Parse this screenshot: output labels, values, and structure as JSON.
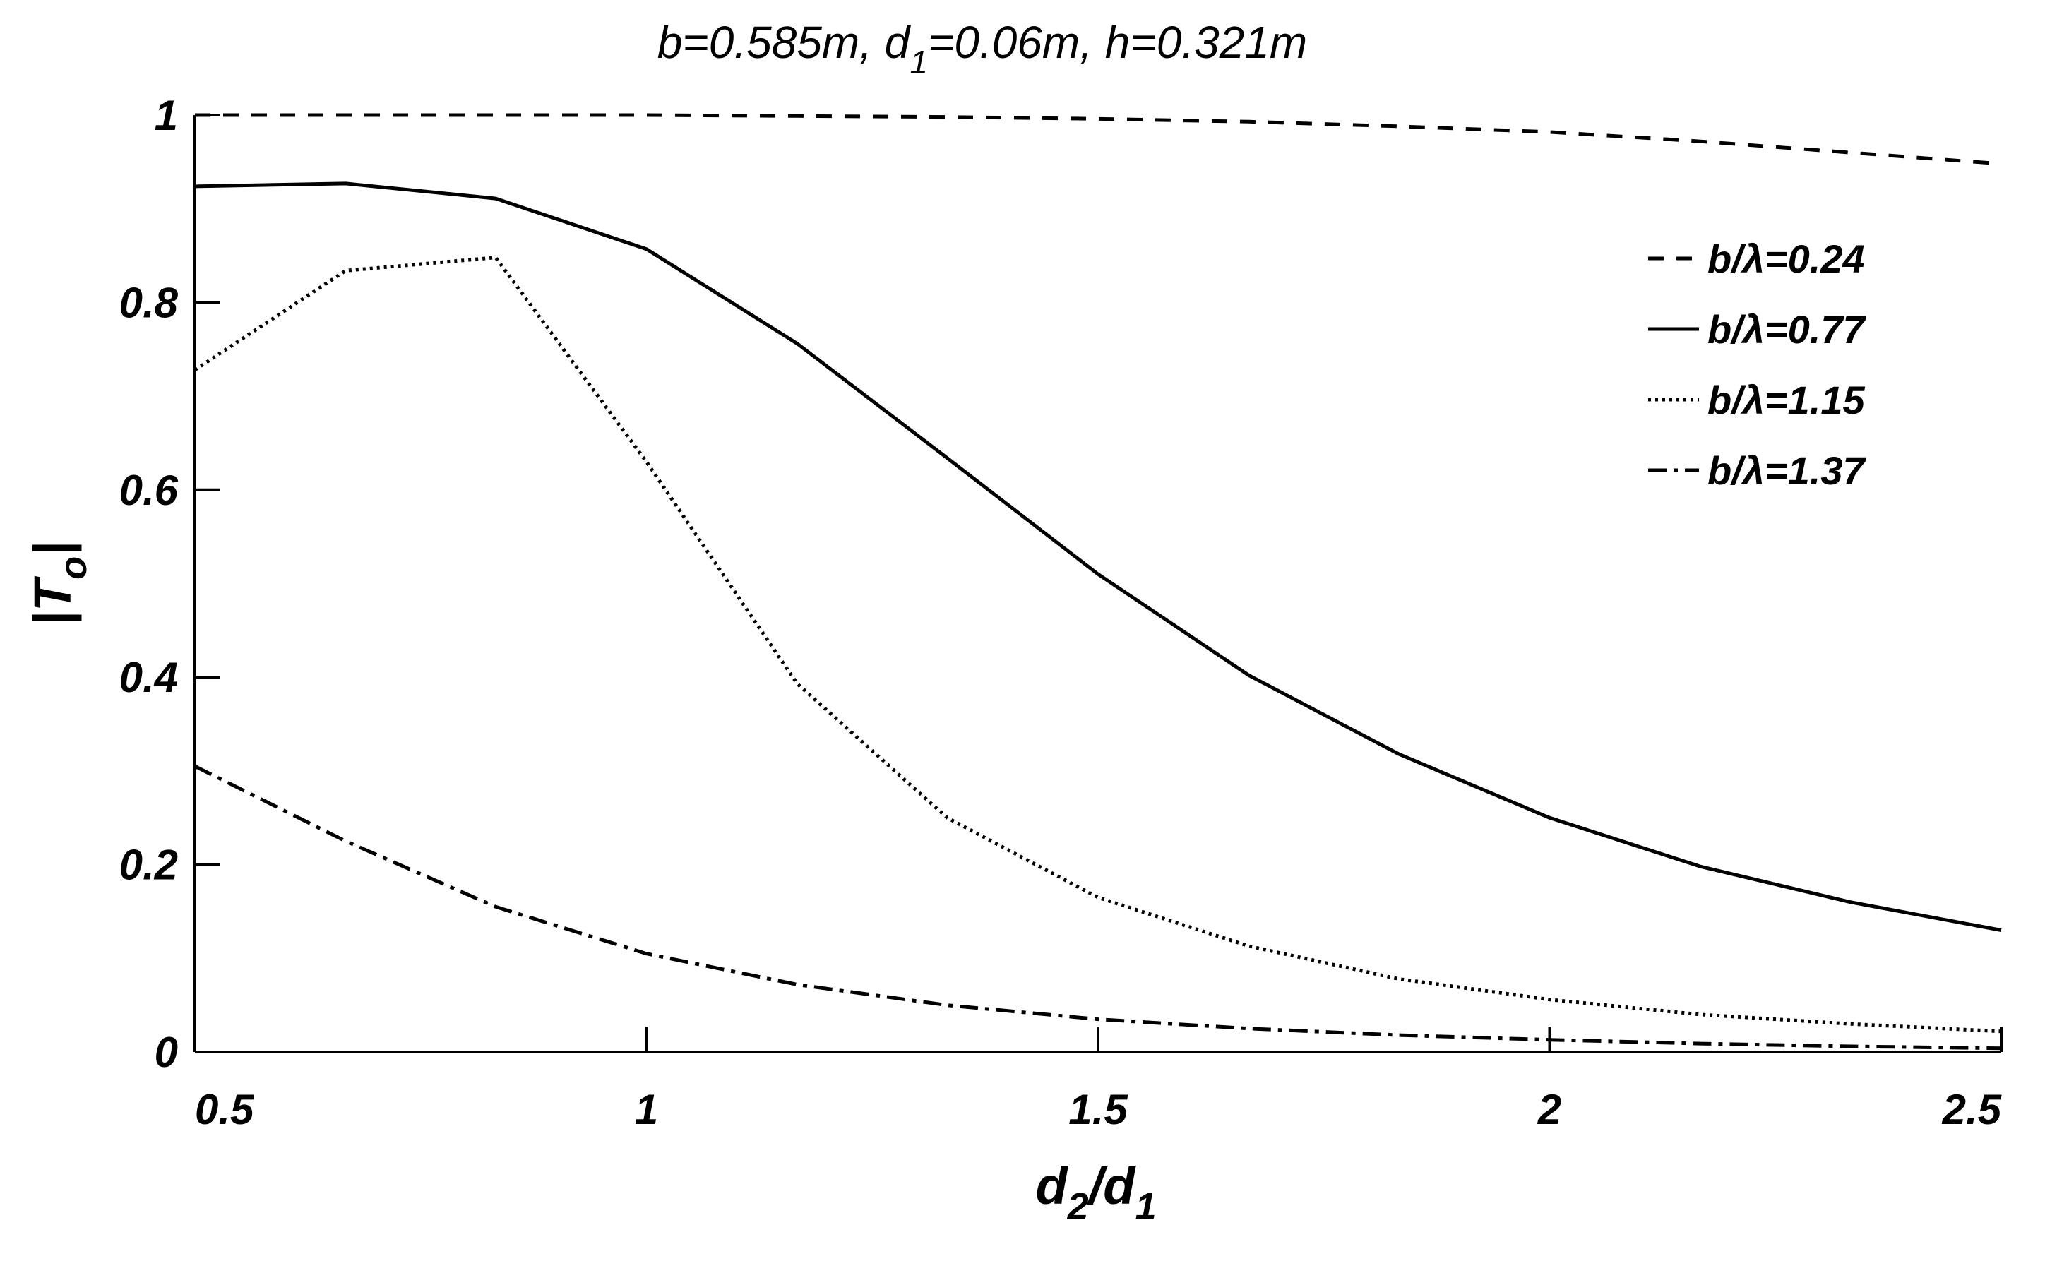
{
  "chart_data": {
    "type": "line",
    "title": {
      "p1": "b=0.585m, d",
      "p1_sub": "1",
      "p2": "=0.06m, h=0.321m"
    },
    "xlabel": {
      "a": "d",
      "a_sub": "2",
      "slash": "/d",
      "b_sub": "1"
    },
    "ylabel": {
      "open": "|T",
      "sub": "o",
      "close": "|"
    },
    "xlim": [
      0.5,
      2.5
    ],
    "ylim": [
      0,
      1
    ],
    "xticks": [
      0.5,
      1,
      1.5,
      2,
      2.5
    ],
    "xtick_labels": [
      "0.5",
      "1",
      "1.5",
      "2",
      "2.5"
    ],
    "yticks": [
      0,
      0.2,
      0.4,
      0.6,
      0.8,
      1
    ],
    "ytick_labels": [
      "0",
      "0.2",
      "0.4",
      "0.6",
      "0.8",
      "1"
    ],
    "grid": false,
    "legend_position": "top-right",
    "x": [
      0.5,
      0.667,
      0.833,
      1.0,
      1.167,
      1.333,
      1.5,
      1.667,
      1.833,
      2.0,
      2.167,
      2.333,
      2.5
    ],
    "series": [
      {
        "name": "b/λ=0.24",
        "style": "dashed",
        "values": [
          1.0,
          1.0,
          1.0,
          1.0,
          0.999,
          0.998,
          0.996,
          0.993,
          0.988,
          0.982,
          0.972,
          0.96,
          0.948
        ]
      },
      {
        "name": "b/λ=0.77",
        "style": "solid",
        "values": [
          0.924,
          0.927,
          0.911,
          0.857,
          0.756,
          0.634,
          0.51,
          0.402,
          0.318,
          0.25,
          0.198,
          0.16,
          0.13
        ]
      },
      {
        "name": "b/λ=1.15",
        "style": "dotted",
        "values": [
          0.728,
          0.834,
          0.848,
          0.63,
          0.393,
          0.25,
          0.165,
          0.113,
          0.078,
          0.056,
          0.04,
          0.03,
          0.022
        ]
      },
      {
        "name": "b/λ=1.37",
        "style": "dashdot",
        "values": [
          0.305,
          0.225,
          0.155,
          0.105,
          0.072,
          0.05,
          0.035,
          0.025,
          0.018,
          0.013,
          0.009,
          0.006,
          0.004
        ]
      }
    ],
    "colors": {
      "line": "#000000",
      "background": "#ffffff"
    }
  }
}
